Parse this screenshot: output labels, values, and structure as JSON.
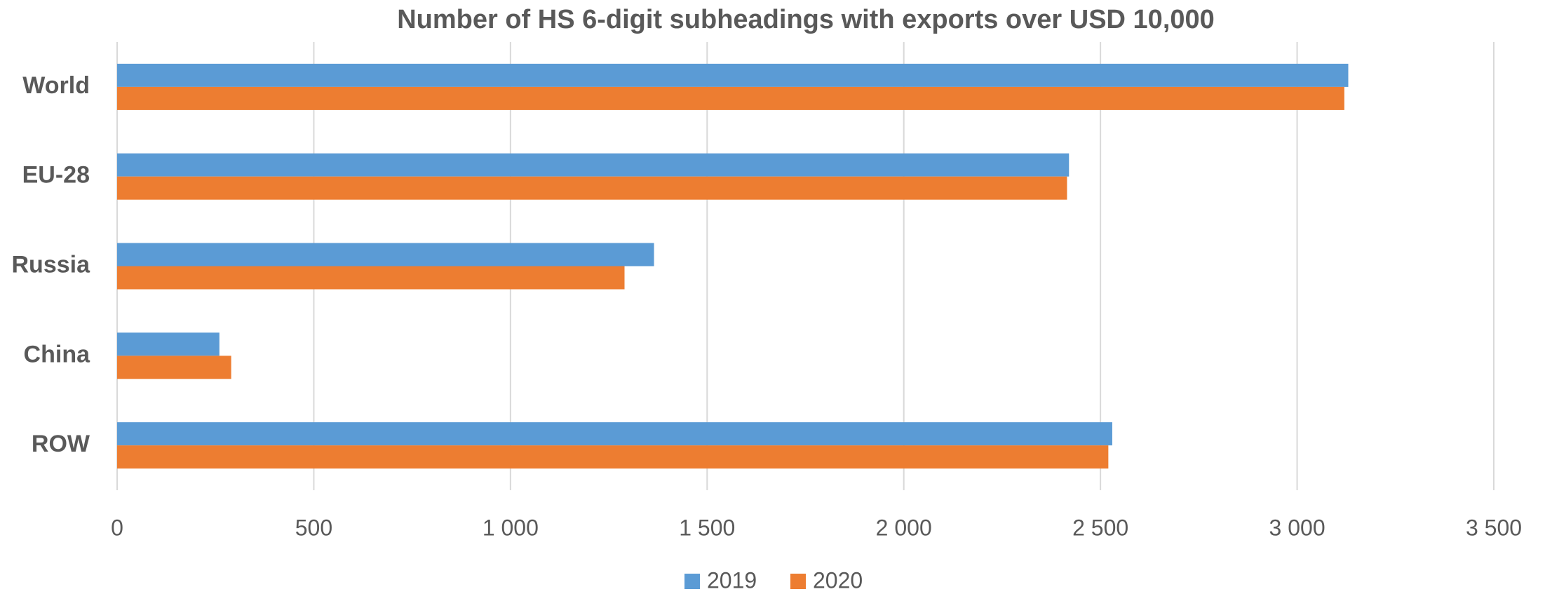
{
  "chart_data": {
    "type": "hbar",
    "title": "Number of HS 6-digit subheadings with exports over USD 10,000",
    "categories": [
      "World",
      "EU-28",
      "Russia",
      "China",
      "ROW"
    ],
    "series": [
      {
        "name": "2019",
        "color": "#5b9bd5",
        "values": [
          3130,
          2420,
          1365,
          260,
          2530
        ]
      },
      {
        "name": "2020",
        "color": "#ed7d31",
        "values": [
          3120,
          2415,
          1290,
          290,
          2520
        ]
      }
    ],
    "xlim": [
      0,
      3500
    ],
    "xticks": [
      0,
      500,
      {
        "value": 1000,
        "label": "1 000"
      },
      {
        "value": 1500,
        "label": "1 500"
      },
      {
        "value": 2000,
        "label": "2 000"
      },
      {
        "value": 2500,
        "label": "2 500"
      },
      {
        "value": 3000,
        "label": "3 000"
      },
      {
        "value": 3500,
        "label": "3 500"
      }
    ],
    "grid": true,
    "legend": "bottom"
  }
}
